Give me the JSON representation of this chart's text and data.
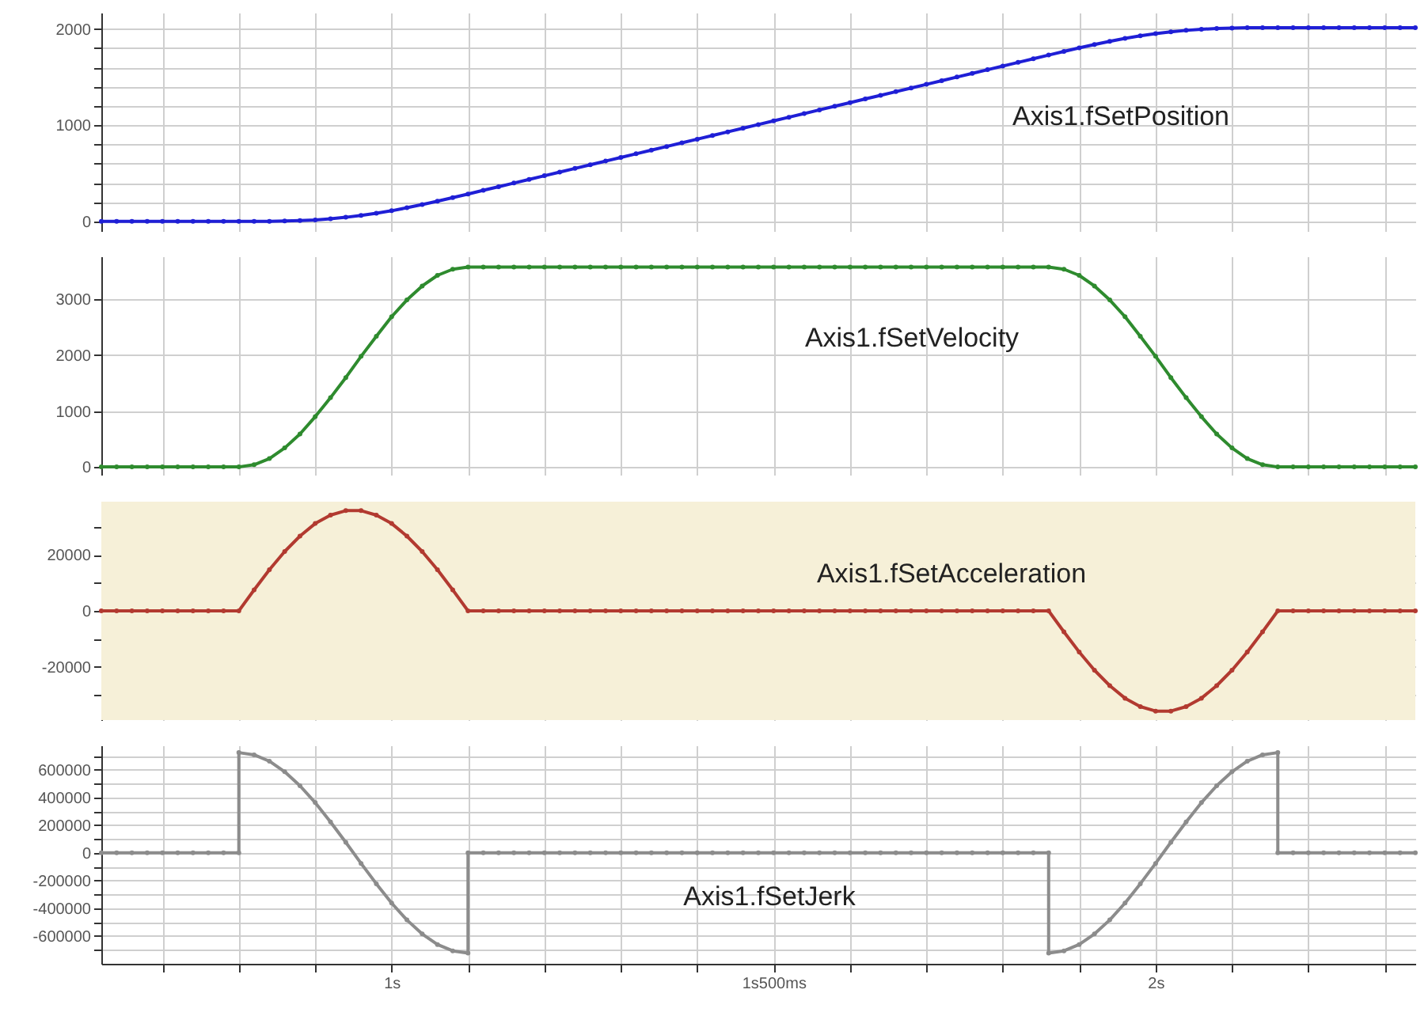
{
  "chart_data": [
    {
      "type": "line",
      "x": [
        0.62,
        0.64,
        0.66,
        0.68,
        0.7,
        0.72,
        0.74,
        0.76,
        0.78,
        0.8,
        0.82,
        0.84,
        0.86,
        0.88,
        0.9,
        0.92,
        0.94,
        0.96,
        0.98,
        1.0,
        1.02,
        1.04,
        1.06,
        1.08,
        1.1,
        1.12,
        1.14,
        1.16,
        1.18,
        1.2,
        1.22,
        1.24,
        1.26,
        1.28,
        1.3,
        1.32,
        1.34,
        1.36,
        1.38,
        1.4,
        1.42,
        1.44,
        1.46,
        1.48,
        1.5,
        1.52,
        1.54,
        1.56,
        1.58,
        1.6,
        1.62,
        1.64,
        1.66,
        1.68,
        1.7,
        1.72,
        1.74,
        1.76,
        1.78,
        1.8,
        1.82,
        1.84,
        1.86,
        1.88,
        1.9,
        1.92,
        1.94,
        1.96,
        1.98,
        2.0,
        2.02,
        2.04,
        2.06,
        2.08,
        2.1,
        2.12,
        2.14,
        2.16,
        2.18,
        2.2,
        2.22,
        2.24,
        2.26,
        2.28,
        2.3,
        2.32,
        2.34
      ],
      "series": [
        {
          "name": "Axis1.fSetPosition",
          "color": "#1f1fd6",
          "values": [
            0,
            0,
            0,
            0,
            0,
            0,
            0,
            0,
            0,
            0,
            0,
            1,
            4,
            9,
            16,
            28,
            43,
            62,
            85,
            111,
            142,
            175,
            210,
            247,
            285,
            323,
            361,
            399,
            437,
            475,
            513,
            551,
            589,
            627,
            665,
            703,
            741,
            779,
            817,
            855,
            893,
            931,
            969,
            1007,
            1045,
            1083,
            1121,
            1159,
            1197,
            1235,
            1273,
            1311,
            1349,
            1387,
            1425,
            1463,
            1501,
            1539,
            1577,
            1615,
            1653,
            1691,
            1729,
            1767,
            1804,
            1839,
            1872,
            1903,
            1929,
            1952,
            1971,
            1986,
            1998,
            2005,
            2010,
            2013,
            2014,
            2014,
            2014,
            2014,
            2014,
            2014,
            2014,
            2014,
            2014,
            2014,
            2014
          ]
        }
      ],
      "xlim": [
        0.62,
        2.34
      ],
      "xticks": [
        {
          "value": 0.7,
          "label": null
        },
        {
          "value": 0.8,
          "label": null
        },
        {
          "value": 0.9,
          "label": null
        },
        {
          "value": 1,
          "label": null
        },
        {
          "value": 1.1,
          "label": null
        },
        {
          "value": 1.2,
          "label": null
        },
        {
          "value": 1.3,
          "label": null
        },
        {
          "value": 1.4,
          "label": null
        },
        {
          "value": 1.5,
          "label": null
        },
        {
          "value": 1.6,
          "label": null
        },
        {
          "value": 1.7,
          "label": null
        },
        {
          "value": 1.8,
          "label": null
        },
        {
          "value": 1.9,
          "label": null
        },
        {
          "value": 2,
          "label": null
        },
        {
          "value": 2.1,
          "label": null
        },
        {
          "value": 2.2,
          "label": null
        },
        {
          "value": 2.3,
          "label": null
        }
      ],
      "ylim": [
        -100,
        2170
      ],
      "yticks": [
        0,
        {
          "value": 200,
          "label": null
        },
        {
          "value": 400,
          "label": null
        },
        {
          "value": 600,
          "label": null
        },
        {
          "value": 800,
          "label": null
        },
        1000,
        {
          "value": 1200,
          "label": null
        },
        {
          "value": 1400,
          "label": null
        },
        {
          "value": 1600,
          "label": null
        },
        {
          "value": 1800,
          "label": null
        },
        2000
      ],
      "tick_labels": "y",
      "grid": true,
      "marker": "circle",
      "line_style": "solid"
    },
    {
      "type": "line",
      "x": [
        0.62,
        0.64,
        0.66,
        0.68,
        0.7,
        0.72,
        0.74,
        0.76,
        0.78,
        0.8,
        0.82,
        0.84,
        0.86,
        0.88,
        0.9,
        0.92,
        0.94,
        0.96,
        0.98,
        1.0,
        1.02,
        1.04,
        1.06,
        1.08,
        1.1,
        1.12,
        1.14,
        1.16,
        1.18,
        1.2,
        1.22,
        1.24,
        1.26,
        1.28,
        1.3,
        1.32,
        1.34,
        1.36,
        1.38,
        1.4,
        1.42,
        1.44,
        1.46,
        1.48,
        1.5,
        1.52,
        1.54,
        1.56,
        1.58,
        1.6,
        1.62,
        1.64,
        1.66,
        1.68,
        1.7,
        1.72,
        1.74,
        1.76,
        1.78,
        1.8,
        1.82,
        1.84,
        1.86,
        1.88,
        1.9,
        1.92,
        1.94,
        1.96,
        1.98,
        2.0,
        2.02,
        2.04,
        2.06,
        2.08,
        2.1,
        2.12,
        2.14,
        2.16,
        2.18,
        2.2,
        2.22,
        2.24,
        2.26,
        2.28,
        2.3,
        2.32,
        2.34
      ],
      "series": [
        {
          "name": "Axis1.fSetVelocity",
          "color": "#2e8b2e",
          "values": [
            0,
            0,
            0,
            0,
            0,
            0,
            0,
            0,
            0,
            0,
            40,
            150,
            340,
            590,
            900,
            1240,
            1600,
            1980,
            2340,
            2690,
            2990,
            3240,
            3430,
            3540,
            3580,
            3580,
            3580,
            3580,
            3580,
            3580,
            3580,
            3580,
            3580,
            3580,
            3580,
            3580,
            3580,
            3580,
            3580,
            3580,
            3580,
            3580,
            3580,
            3580,
            3580,
            3580,
            3580,
            3580,
            3580,
            3580,
            3580,
            3580,
            3580,
            3580,
            3580,
            3580,
            3580,
            3580,
            3580,
            3580,
            3580,
            3580,
            3580,
            3540,
            3430,
            3240,
            2990,
            2690,
            2340,
            1980,
            1600,
            1240,
            900,
            590,
            340,
            150,
            40,
            0,
            0,
            0,
            0,
            0,
            0,
            0,
            0,
            0,
            0
          ]
        }
      ],
      "xlim": [
        0.62,
        2.34
      ],
      "xticks": [
        {
          "value": 0.7,
          "label": null
        },
        {
          "value": 0.8,
          "label": null
        },
        {
          "value": 0.9,
          "label": null
        },
        {
          "value": 1,
          "label": null
        },
        {
          "value": 1.1,
          "label": null
        },
        {
          "value": 1.2,
          "label": null
        },
        {
          "value": 1.3,
          "label": null
        },
        {
          "value": 1.4,
          "label": null
        },
        {
          "value": 1.5,
          "label": null
        },
        {
          "value": 1.6,
          "label": null
        },
        {
          "value": 1.7,
          "label": null
        },
        {
          "value": 1.8,
          "label": null
        },
        {
          "value": 1.9,
          "label": null
        },
        {
          "value": 2,
          "label": null
        },
        {
          "value": 2.1,
          "label": null
        },
        {
          "value": 2.2,
          "label": null
        },
        {
          "value": 2.3,
          "label": null
        }
      ],
      "ylim": [
        -140,
        3770
      ],
      "yticks": [
        0,
        1000,
        2000,
        3000
      ],
      "tick_labels": "y",
      "grid": true,
      "marker": "circle",
      "line_style": "solid"
    },
    {
      "type": "line",
      "x": [
        0.62,
        0.64,
        0.66,
        0.68,
        0.7,
        0.72,
        0.74,
        0.76,
        0.78,
        0.8,
        0.82,
        0.84,
        0.86,
        0.88,
        0.9,
        0.92,
        0.94,
        0.96,
        0.98,
        1.0,
        1.02,
        1.04,
        1.06,
        1.08,
        1.1,
        1.12,
        1.14,
        1.16,
        1.18,
        1.2,
        1.22,
        1.24,
        1.26,
        1.28,
        1.3,
        1.32,
        1.34,
        1.36,
        1.38,
        1.4,
        1.42,
        1.44,
        1.46,
        1.48,
        1.5,
        1.52,
        1.54,
        1.56,
        1.58,
        1.6,
        1.62,
        1.64,
        1.66,
        1.68,
        1.7,
        1.72,
        1.74,
        1.76,
        1.78,
        1.8,
        1.82,
        1.84,
        1.86,
        1.88,
        1.9,
        1.92,
        1.94,
        1.96,
        1.98,
        2.0,
        2.02,
        2.04,
        2.06,
        2.08,
        2.1,
        2.12,
        2.14,
        2.16,
        2.18,
        2.2,
        2.22,
        2.24,
        2.26,
        2.28,
        2.3,
        2.32,
        2.34
      ],
      "series": [
        {
          "name": "Axis1.fSetAcceleration",
          "color": "#b23a30",
          "values": [
            0,
            0,
            0,
            0,
            0,
            0,
            0,
            0,
            0,
            0,
            7500,
            14700,
            21200,
            26700,
            31200,
            34200,
            35800,
            35800,
            34200,
            31200,
            26700,
            21200,
            14700,
            7500,
            0,
            0,
            0,
            0,
            0,
            0,
            0,
            0,
            0,
            0,
            0,
            0,
            0,
            0,
            0,
            0,
            0,
            0,
            0,
            0,
            0,
            0,
            0,
            0,
            0,
            0,
            0,
            0,
            0,
            0,
            0,
            0,
            0,
            0,
            0,
            0,
            0,
            0,
            0,
            -7500,
            -14700,
            -21200,
            -26700,
            -31200,
            -34200,
            -35800,
            -35800,
            -34200,
            -31200,
            -26700,
            -21200,
            -14700,
            -7500,
            0,
            0,
            0,
            0,
            0,
            0,
            0,
            0,
            0,
            0
          ]
        }
      ],
      "xlim": [
        0.62,
        2.34
      ],
      "xticks": [
        {
          "value": 0.7,
          "label": null
        },
        {
          "value": 0.8,
          "label": null
        },
        {
          "value": 0.9,
          "label": null
        },
        {
          "value": 1,
          "label": null
        },
        {
          "value": 1.1,
          "label": null
        },
        {
          "value": 1.2,
          "label": null
        },
        {
          "value": 1.3,
          "label": null
        },
        {
          "value": 1.4,
          "label": null
        },
        {
          "value": 1.5,
          "label": null
        },
        {
          "value": 1.6,
          "label": null
        },
        {
          "value": 1.7,
          "label": null
        },
        {
          "value": 1.8,
          "label": null
        },
        {
          "value": 1.9,
          "label": null
        },
        {
          "value": 2,
          "label": null
        },
        {
          "value": 2.1,
          "label": null
        },
        {
          "value": 2.2,
          "label": null
        },
        {
          "value": 2.3,
          "label": null
        }
      ],
      "ylim": [
        -39000,
        39000
      ],
      "yticks": [
        {
          "value": -30000,
          "label": null
        },
        -20000,
        {
          "value": -10000,
          "label": null
        },
        0,
        {
          "value": 10000,
          "label": null
        },
        20000,
        {
          "value": 30000,
          "label": null
        }
      ],
      "bands": [
        {
          "axis": "y",
          "from": -39000,
          "to": 39000,
          "color": "#f6f0d8"
        }
      ],
      "tick_labels": "y",
      "grid": true,
      "marker": "circle",
      "line_style": "solid"
    },
    {
      "type": "line",
      "x": [
        0.62,
        0.64,
        0.66,
        0.68,
        0.7,
        0.72,
        0.74,
        0.76,
        0.78,
        0.8,
        0.8,
        0.82,
        0.84,
        0.86,
        0.88,
        0.9,
        0.92,
        0.94,
        0.96,
        0.98,
        1.0,
        1.02,
        1.04,
        1.06,
        1.08,
        1.1,
        1.1,
        1.12,
        1.14,
        1.16,
        1.18,
        1.2,
        1.22,
        1.24,
        1.26,
        1.28,
        1.3,
        1.32,
        1.34,
        1.36,
        1.38,
        1.4,
        1.42,
        1.44,
        1.46,
        1.48,
        1.5,
        1.52,
        1.54,
        1.56,
        1.58,
        1.6,
        1.62,
        1.64,
        1.66,
        1.68,
        1.7,
        1.72,
        1.74,
        1.76,
        1.78,
        1.8,
        1.82,
        1.84,
        1.86,
        1.86,
        1.88,
        1.9,
        1.92,
        1.94,
        1.96,
        1.98,
        2.0,
        2.02,
        2.04,
        2.06,
        2.08,
        2.1,
        2.12,
        2.14,
        2.16,
        2.16,
        2.18,
        2.2,
        2.22,
        2.24,
        2.26,
        2.28,
        2.3,
        2.32,
        2.34
      ],
      "series": [
        {
          "name": "Axis1.fSetJerk",
          "color": "#8c8c8c",
          "values": [
            0,
            0,
            0,
            0,
            0,
            0,
            0,
            0,
            0,
            0,
            723000,
            707000,
            661000,
            585000,
            484000,
            362000,
            223000,
            76000,
            -76000,
            -223000,
            -362000,
            -484000,
            -585000,
            -661000,
            -707000,
            -723000,
            0,
            0,
            0,
            0,
            0,
            0,
            0,
            0,
            0,
            0,
            0,
            0,
            0,
            0,
            0,
            0,
            0,
            0,
            0,
            0,
            0,
            0,
            0,
            0,
            0,
            0,
            0,
            0,
            0,
            0,
            0,
            0,
            0,
            0,
            0,
            0,
            0,
            0,
            0,
            -723000,
            -707000,
            -661000,
            -585000,
            -484000,
            -362000,
            -223000,
            -76000,
            76000,
            223000,
            362000,
            484000,
            585000,
            661000,
            707000,
            723000,
            0,
            0,
            0,
            0,
            0,
            0,
            0,
            0,
            0,
            0
          ]
        }
      ],
      "xlim": [
        0.62,
        2.34
      ],
      "xticks": [
        {
          "value": 0.7,
          "label": null
        },
        {
          "value": 0.8,
          "label": null
        },
        {
          "value": 0.9,
          "label": null
        },
        {
          "value": 1,
          "label": "1s"
        },
        {
          "value": 1.1,
          "label": null
        },
        {
          "value": 1.2,
          "label": null
        },
        {
          "value": 1.3,
          "label": null
        },
        {
          "value": 1.4,
          "label": null
        },
        {
          "value": 1.5,
          "label": "1s500ms"
        },
        {
          "value": 1.6,
          "label": null
        },
        {
          "value": 1.7,
          "label": null
        },
        {
          "value": 1.8,
          "label": null
        },
        {
          "value": 1.9,
          "label": null
        },
        {
          "value": 2,
          "label": "2s"
        },
        {
          "value": 2.1,
          "label": null
        },
        {
          "value": 2.2,
          "label": null
        },
        {
          "value": 2.3,
          "label": null
        }
      ],
      "ylim": [
        -800000,
        775000
      ],
      "yticks": [
        {
          "value": -700000,
          "label": null
        },
        -600000,
        {
          "value": -500000,
          "label": null
        },
        -400000,
        {
          "value": -300000,
          "label": null
        },
        -200000,
        {
          "value": -100000,
          "label": null
        },
        0,
        {
          "value": 100000,
          "label": null
        },
        200000,
        {
          "value": 300000,
          "label": null
        },
        400000,
        {
          "value": 500000,
          "label": null
        },
        600000,
        {
          "value": 700000,
          "label": null
        }
      ],
      "grid": true,
      "marker": "circle",
      "line_style": "solid"
    }
  ]
}
